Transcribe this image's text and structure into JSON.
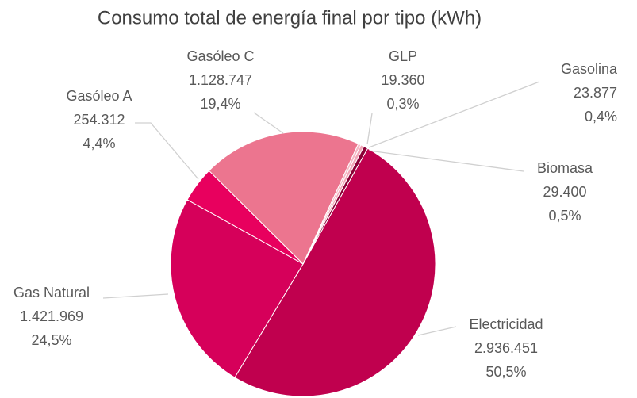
{
  "chart_data": {
    "type": "pie",
    "title": "Consumo total de energía final por tipo (kWh)",
    "categories": [
      "Electricidad",
      "Gas Natural",
      "Gasóleo A",
      "Gasóleo C",
      "GLP",
      "Gasolina",
      "Biomasa"
    ],
    "values": [
      2936451,
      1421969,
      254312,
      1128747,
      19360,
      23877,
      29400
    ],
    "value_labels": [
      "2.936.451",
      "1.421.969",
      "254.312",
      "1.128.747",
      "19.360",
      "23.877",
      "29.400"
    ],
    "percents": [
      50.5,
      24.5,
      4.4,
      19.4,
      0.3,
      0.4,
      0.5
    ],
    "percent_labels": [
      "50,5%",
      "24,5%",
      "4,4%",
      "19,4%",
      "0,3%",
      "0,4%",
      "0,5%"
    ],
    "colors": [
      "#c0004e",
      "#d6005a",
      "#e8005e",
      "#ec758f",
      "#f4b8c4",
      "#f2a7b8",
      "#8a0036"
    ]
  }
}
